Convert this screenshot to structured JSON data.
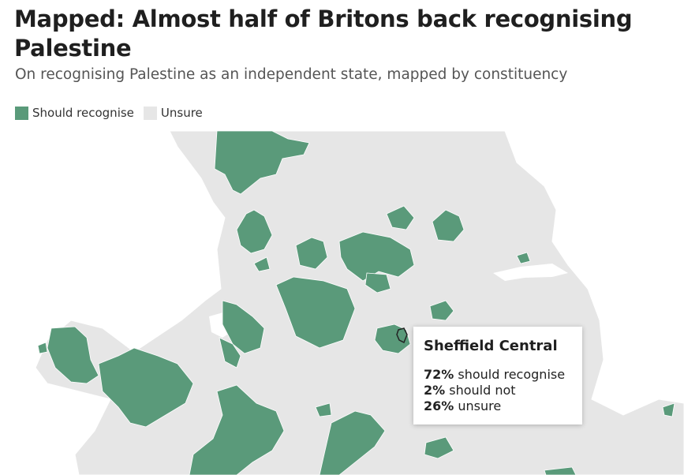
{
  "header": {
    "title": "Mapped: Almost half of Britons back recognising Palestine",
    "subtitle": "On recognising Palestine as an independent state, mapped by constituency"
  },
  "legend": {
    "items": [
      {
        "label": "Should recognise",
        "color": "#5a9a7a"
      },
      {
        "label": "Unsure",
        "color": "#e6e6e6"
      }
    ]
  },
  "colors": {
    "should_recognise": "#5a9a7a",
    "unsure": "#e6e6e6",
    "sea": "#ffffff",
    "border": "#ffffff"
  },
  "tooltip": {
    "constituency": "Sheffield Central",
    "rows": [
      {
        "value": "72%",
        "label": "should recognise"
      },
      {
        "value": "2%",
        "label": "should not"
      },
      {
        "value": "26%",
        "label": "unsure"
      }
    ]
  }
}
